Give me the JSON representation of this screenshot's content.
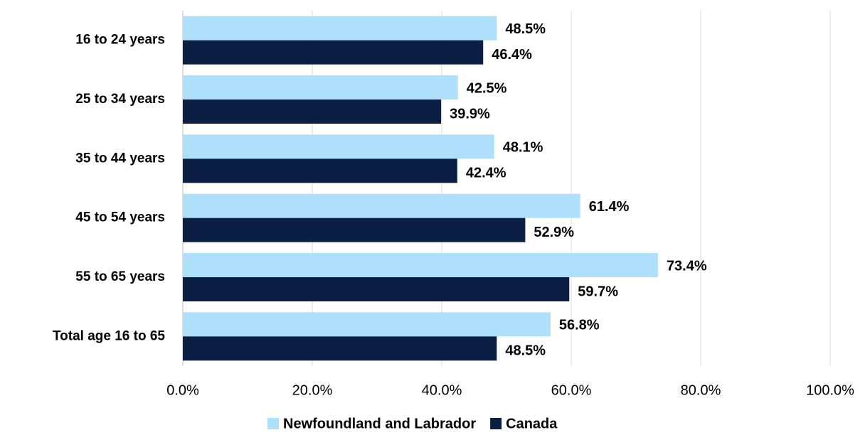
{
  "chart_data": {
    "type": "bar",
    "orientation": "horizontal",
    "categories": [
      "16 to 24 years",
      "25 to 34 years",
      "35 to 44 years",
      "45 to 54 years",
      "55 to 65 years",
      "Total age 16 to 65"
    ],
    "series": [
      {
        "name": "Newfoundland and Labrador",
        "color": "#aedffb",
        "values": [
          48.5,
          42.5,
          48.1,
          61.4,
          73.4,
          56.8
        ],
        "value_labels": [
          "48.5%",
          "42.5%",
          "48.1%",
          "61.4%",
          "73.4%",
          "56.8%"
        ]
      },
      {
        "name": "Canada",
        "color": "#0b1f45",
        "values": [
          46.4,
          39.9,
          42.4,
          52.9,
          59.7,
          48.5
        ],
        "value_labels": [
          "46.4%",
          "39.9%",
          "42.4%",
          "52.9%",
          "59.7%",
          "48.5%"
        ]
      }
    ],
    "xlim": [
      0,
      100
    ],
    "xticks": [
      {
        "value": 0,
        "label": "0.0%"
      },
      {
        "value": 20,
        "label": "20.0%"
      },
      {
        "value": 40,
        "label": "40.0%"
      },
      {
        "value": 60,
        "label": "60.0%"
      },
      {
        "value": 80,
        "label": "80.0%"
      },
      {
        "value": 100,
        "label": "100.0%"
      }
    ],
    "grid": true,
    "legend": "bottom"
  }
}
